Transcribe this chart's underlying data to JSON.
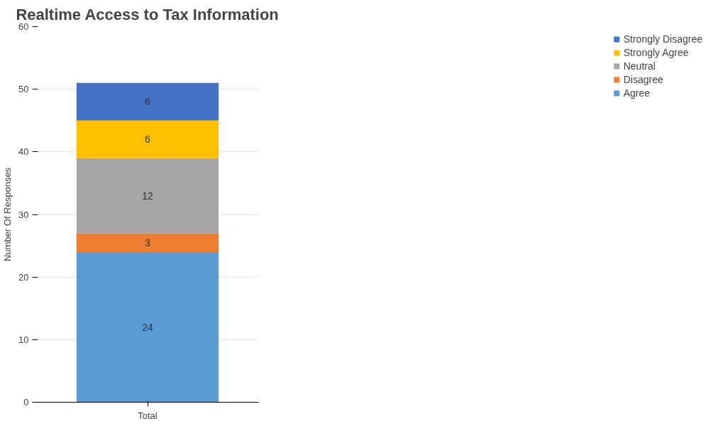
{
  "chart_data": {
    "type": "bar",
    "title": "Realtime Access to Tax Information",
    "ylabel": "Number Of Responses",
    "categories": [
      "Total"
    ],
    "stacked": true,
    "data_labels": true,
    "grid": "y",
    "legend": "right",
    "ylim": [
      0,
      60
    ],
    "yticks": [
      0,
      10,
      20,
      30,
      40,
      50,
      60
    ],
    "series": [
      {
        "name": "Agree",
        "color": "#5b9bd5",
        "values": [
          24
        ]
      },
      {
        "name": "Disagree",
        "color": "#ed7d31",
        "values": [
          3
        ]
      },
      {
        "name": "Neutral",
        "color": "#a5a5a5",
        "values": [
          12
        ]
      },
      {
        "name": "Strongly Agree",
        "color": "#ffc000",
        "values": [
          6
        ]
      },
      {
        "name": "Strongly Disagree",
        "color": "#4472c4",
        "values": [
          6
        ]
      }
    ]
  }
}
